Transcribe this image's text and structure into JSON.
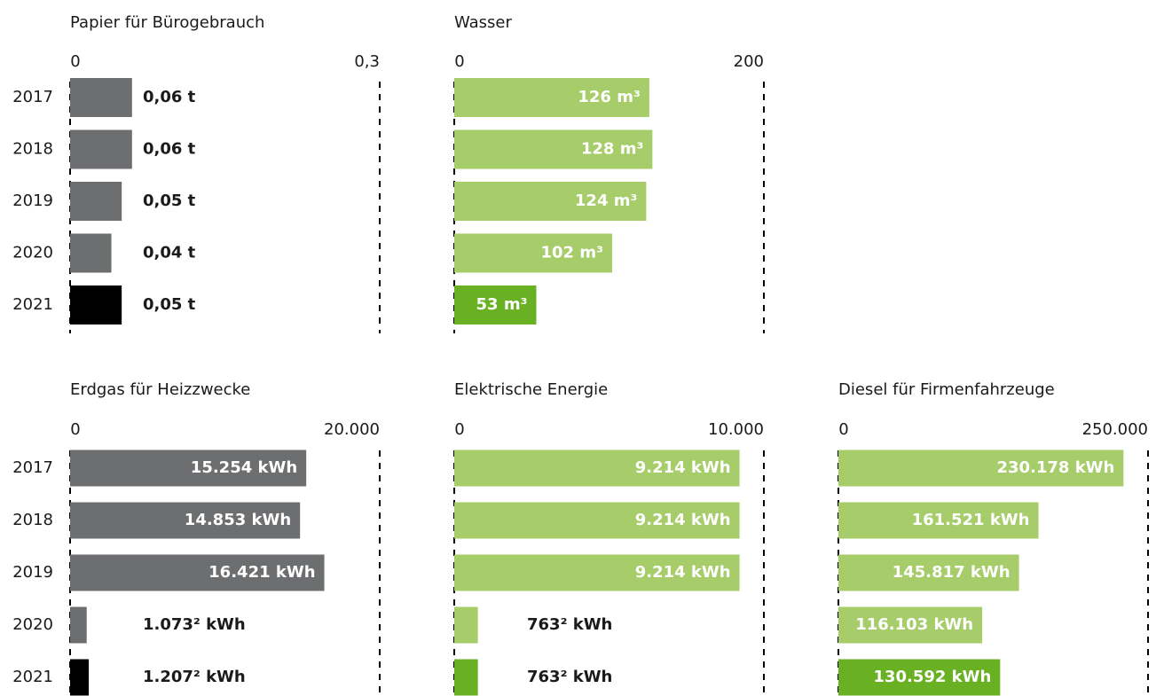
{
  "chart_data": [
    {
      "type": "barh",
      "title": "Papier für Bürogebrauch",
      "categories": [
        "2017",
        "2018",
        "2019",
        "2020",
        "2021"
      ],
      "values": [
        0.06,
        0.06,
        0.05,
        0.04,
        0.05
      ],
      "value_labels": [
        "0,06 t",
        "0,06 t",
        "0,05 t",
        "0,04 t",
        "0,05 t"
      ],
      "colors": [
        "#6d6e70",
        "#6d6e70",
        "#6d6e70",
        "#6d6e70",
        "#000000"
      ],
      "xlim": [
        0,
        0.3
      ],
      "xticks": [
        0,
        {
          "value": 0.3,
          "label": "0,3"
        }
      ]
    },
    {
      "type": "barh",
      "title": "Wasser",
      "values": [
        126,
        128,
        124,
        102,
        53
      ],
      "value_labels": [
        "126 m³",
        "128 m³",
        "124 m³",
        "102 m³",
        "53 m³"
      ],
      "colors": [
        "#a6cd6a",
        "#a6cd6a",
        "#a6cd6a",
        "#a6cd6a",
        "#6ab023"
      ],
      "xlim": [
        0,
        200
      ],
      "xticks": [
        0,
        200
      ]
    },
    {
      "type": "barh",
      "title": "Erdgas für Heizzwecke",
      "categories": [
        "2017",
        "2018",
        "2019",
        "2020",
        "2021"
      ],
      "values": [
        15254,
        14853,
        16421,
        1073,
        1207
      ],
      "value_labels": [
        "15.254 kWh",
        "14.853 kWh",
        "16.421 kWh",
        "1.073² kWh",
        "1.207² kWh"
      ],
      "colors": [
        "#6d6e70",
        "#6d6e70",
        "#6d6e70",
        "#6d6e70",
        "#000000"
      ],
      "xlim": [
        0,
        20000
      ],
      "xticks": [
        0,
        {
          "value": 20000,
          "label": "20.000"
        }
      ]
    },
    {
      "type": "barh",
      "title": "Elektrische Energie",
      "values": [
        9214,
        9214,
        9214,
        763,
        763
      ],
      "value_labels": [
        "9.214 kWh",
        "9.214 kWh",
        "9.214 kWh",
        "763² kWh",
        "763² kWh"
      ],
      "colors": [
        "#a6cd6a",
        "#a6cd6a",
        "#a6cd6a",
        "#a6cd6a",
        "#6ab023"
      ],
      "xlim": [
        0,
        10000
      ],
      "xticks": [
        0,
        {
          "value": 10000,
          "label": "10.000"
        }
      ]
    },
    {
      "type": "barh",
      "title": "Diesel für Firmenfahrzeuge",
      "values": [
        230178,
        161521,
        145817,
        116103,
        130592
      ],
      "value_labels": [
        "230.178 kWh",
        "161.521 kWh",
        "145.817 kWh",
        "116.103 kWh",
        "130.592 kWh"
      ],
      "colors": [
        "#a6cd6a",
        "#a6cd6a",
        "#a6cd6a",
        "#a6cd6a",
        "#6ab023"
      ],
      "xlim": [
        0,
        250000
      ],
      "xticks": [
        0,
        {
          "value": 250000,
          "label": "250.000"
        }
      ]
    }
  ]
}
